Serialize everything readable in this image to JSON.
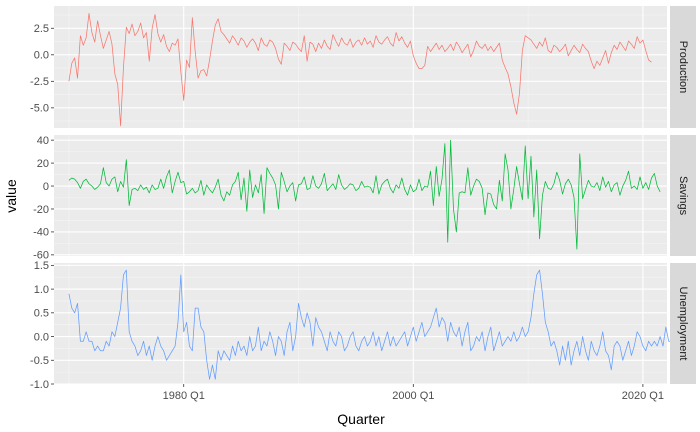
{
  "chart_data": {
    "type": "line",
    "xlabel": "Quarter",
    "ylabel": "value",
    "x_start": 1970.0,
    "x_step": 0.25,
    "x_ticks": [
      {
        "value": 1980.0,
        "label": "1980 Q1"
      },
      {
        "value": 2000.0,
        "label": "2000 Q1"
      },
      {
        "value": 2020.0,
        "label": "2020 Q1"
      }
    ],
    "xlim": [
      1968.7,
      2022.1
    ],
    "grid": true,
    "facets": [
      {
        "name": "Production",
        "color": "#F8766D",
        "ylim": [
          -6.9,
          4.6
        ],
        "y_ticks": [
          {
            "value": -5.0,
            "label": "-5.0"
          },
          {
            "value": -2.5,
            "label": "-2.5"
          },
          {
            "value": 0.0,
            "label": "0.0"
          },
          {
            "value": 2.5,
            "label": "2.5"
          }
        ],
        "values": [
          -2.5,
          -0.8,
          -0.3,
          -2.2,
          1.8,
          0.9,
          1.6,
          3.9,
          2.1,
          1.2,
          3.2,
          1.8,
          0.6,
          1.4,
          2.2,
          1.0,
          -1.8,
          -2.8,
          -6.7,
          -1.2,
          2.6,
          2.0,
          2.9,
          1.8,
          2.2,
          3.0,
          1.6,
          2.1,
          -0.6,
          2.5,
          3.8,
          2.0,
          1.2,
          1.9,
          0.8,
          0.3,
          1.1,
          0.9,
          1.5,
          -1.6,
          -4.3,
          -0.5,
          -1.2,
          3.5,
          0.3,
          -2.2,
          -1.5,
          -1.4,
          -2.0,
          -0.5,
          1.3,
          2.8,
          3.4,
          2.2,
          1.9,
          1.5,
          1.1,
          1.8,
          1.4,
          0.9,
          1.6,
          1.3,
          0.7,
          1.2,
          1.5,
          1.1,
          0.4,
          1.6,
          1.0,
          0.8,
          1.4,
          1.2,
          0.6,
          -0.4,
          -0.9,
          1.1,
          0.8,
          0.4,
          1.2,
          1.0,
          0.6,
          0.3,
          1.8,
          -0.6,
          1.2,
          1.0,
          0.3,
          1.1,
          0.6,
          1.4,
          0.8,
          0.5,
          1.9,
          1.3,
          0.8,
          1.6,
          1.1,
          0.9,
          1.5,
          0.7,
          1.2,
          1.4,
          0.9,
          1.6,
          1.0,
          1.3,
          0.7,
          1.8,
          1.2,
          1.0,
          1.4,
          1.7,
          1.1,
          0.8,
          2.1,
          1.3,
          1.7,
          1.1,
          0.7,
          1.3,
          -0.1,
          -0.8,
          -1.3,
          -1.3,
          -1.0,
          0.8,
          0.3,
          0.7,
          1.1,
          0.5,
          0.9,
          0.3,
          0.6,
          1.0,
          0.4,
          1.2,
          0.8,
          0.2,
          0.6,
          1.0,
          -0.2,
          0.4,
          1.3,
          0.8,
          0.6,
          1.0,
          0.4,
          0.8,
          0.3,
          0.7,
          1.1,
          -0.5,
          -1.2,
          -1.8,
          -3.0,
          -4.5,
          -5.6,
          -3.6,
          0.4,
          1.8,
          1.6,
          1.4,
          1.0,
          0.6,
          1.2,
          0.8,
          1.6,
          0.4,
          0.2,
          0.9,
          0.7,
          0.3,
          0.6,
          1.0,
          -0.1,
          0.4,
          0.9,
          0.5,
          0.2,
          1.0,
          0.6,
          0.3,
          -0.6,
          -1.3,
          -0.6,
          -1.0,
          -0.3,
          0.4,
          -0.8,
          0.2,
          0.9,
          0.5,
          1.2,
          0.8,
          0.4,
          1.3,
          1.0,
          0.6,
          1.7,
          1.1,
          1.4,
          0.4,
          -0.5,
          -0.7
        ]
      },
      {
        "name": "Savings",
        "color": "#00BA38",
        "ylim": [
          -61.0,
          44.5
        ],
        "y_ticks": [
          {
            "value": -60,
            "label": "-60"
          },
          {
            "value": -40,
            "label": "-40"
          },
          {
            "value": -20,
            "label": "-20"
          },
          {
            "value": 0,
            "label": "0"
          },
          {
            "value": 20,
            "label": "20"
          },
          {
            "value": 40,
            "label": "40"
          }
        ],
        "values": [
          5.0,
          7.0,
          6.0,
          3.0,
          -2.0,
          4.0,
          6.0,
          2.0,
          0.0,
          -3.0,
          -1.0,
          2.0,
          16.0,
          3.0,
          0.0,
          6.0,
          8.0,
          -5.0,
          4.0,
          -1.0,
          23.0,
          -17.0,
          -3.0,
          -2.0,
          -4.0,
          1.0,
          -3.0,
          -1.0,
          -6.0,
          1.0,
          -3.0,
          -2.0,
          6.0,
          -2.0,
          8.0,
          14.0,
          -6.0,
          4.0,
          12.0,
          3.0,
          4.0,
          -7.0,
          -5.0,
          -2.0,
          -6.0,
          -4.0,
          5.0,
          -8.0,
          1.0,
          -3.0,
          -6.0,
          -1.0,
          6.0,
          -8.0,
          -13.0,
          -5.0,
          -8.0,
          1.0,
          4.0,
          12.0,
          -12.0,
          7.0,
          -22.0,
          14.0,
          -10.0,
          1.0,
          -6.0,
          10.0,
          -24.0,
          16.0,
          11.0,
          7.0,
          1.0,
          -20.0,
          12.0,
          4.0,
          -5.0,
          0.0,
          3.0,
          -13.0,
          1.0,
          2.0,
          8.0,
          -3.0,
          -2.0,
          9.0,
          0.0,
          -2.0,
          2.0,
          11.0,
          -4.0,
          -1.0,
          2.0,
          -3.0,
          10.0,
          1.0,
          -3.0,
          -1.0,
          2.0,
          1.0,
          -4.0,
          -2.0,
          4.0,
          -1.0,
          0.0,
          -1.0,
          -6.0,
          9.0,
          -7.0,
          1.0,
          4.0,
          6.0,
          -2.0,
          -6.0,
          1.0,
          -2.0,
          7.0,
          -3.0,
          -8.0,
          1.0,
          -5.0,
          -3.0,
          6.0,
          -4.0,
          0.0,
          -1.0,
          13.0,
          -17.0,
          17.0,
          -9.0,
          6.0,
          37.0,
          -49.0,
          40.0,
          -20.0,
          -40.0,
          -6.0,
          -5.0,
          -6.0,
          16.0,
          -8.0,
          0.0,
          6.0,
          4.0,
          -2.0,
          -25.0,
          -6.0,
          -7.0,
          -16.0,
          -20.0,
          5.0,
          -13.0,
          28.0,
          14.0,
          -20.0,
          -3.0,
          17.0,
          2.0,
          -12.0,
          35.0,
          -11.0,
          26.0,
          -27.0,
          14.0,
          -46.0,
          -8.0,
          4.0,
          -2.0,
          -3.0,
          2.0,
          12.0,
          5.0,
          -7.0,
          2.0,
          6.0,
          1.0,
          -10.0,
          -55.0,
          28.0,
          -11.0,
          -3.0,
          5.0,
          0.0,
          -1.0,
          3.0,
          -4.0,
          8.0,
          -1.0,
          4.0,
          -5.0,
          1.0,
          3.0,
          -8.0,
          0.0,
          5.0,
          13.0,
          -2.0,
          0.0,
          -3.0,
          8.0,
          -2.0,
          3.0,
          -3.0,
          7.0,
          11.0,
          0.0,
          -5.0
        ]
      },
      {
        "name": "Unemployment",
        "color": "#619CFF",
        "ylim": [
          -1.0,
          1.55
        ],
        "y_ticks": [
          {
            "value": -1.0,
            "label": "-1.0"
          },
          {
            "value": -0.5,
            "label": "-0.5"
          },
          {
            "value": 0.0,
            "label": "0.0"
          },
          {
            "value": 0.5,
            "label": "0.5"
          },
          {
            "value": 1.0,
            "label": "1.0"
          },
          {
            "value": 1.5,
            "label": "1.5"
          }
        ],
        "values": [
          0.9,
          0.6,
          0.5,
          0.7,
          -0.1,
          -0.1,
          0.1,
          -0.1,
          -0.1,
          -0.3,
          -0.2,
          -0.3,
          -0.3,
          -0.1,
          -0.2,
          0.1,
          0.0,
          0.3,
          0.6,
          1.3,
          1.4,
          0.1,
          -0.1,
          -0.2,
          -0.4,
          -0.3,
          -0.1,
          -0.4,
          -0.2,
          -0.5,
          -0.2,
          0.0,
          -0.2,
          -0.3,
          -0.5,
          -0.4,
          -0.3,
          -0.2,
          0.3,
          1.3,
          0.1,
          0.3,
          -0.2,
          -0.3,
          0.6,
          0.6,
          0.2,
          0.1,
          -0.5,
          -0.9,
          -0.6,
          -0.9,
          -0.3,
          -0.5,
          -0.3,
          -0.4,
          -0.5,
          -0.2,
          -0.4,
          -0.1,
          -0.3,
          -0.2,
          -0.4,
          0.0,
          -0.3,
          -0.2,
          0.2,
          -0.3,
          -0.1,
          -0.2,
          0.1,
          -0.1,
          -0.4,
          0.0,
          -0.1,
          -0.4,
          0.1,
          0.3,
          -0.3,
          0.0,
          0.7,
          0.4,
          0.2,
          0.5,
          0.3,
          -0.2,
          0.4,
          0.2,
          0.1,
          -0.1,
          -0.3,
          0.1,
          -0.1,
          -0.2,
          0.1,
          0.0,
          -0.3,
          -0.2,
          0.0,
          0.1,
          -0.2,
          -0.3,
          -0.1,
          0.0,
          -0.2,
          -0.1,
          0.1,
          -0.2,
          0.0,
          -0.3,
          -0.1,
          0.1,
          -0.2,
          0.0,
          -0.2,
          -0.1,
          0.0,
          0.1,
          -0.2,
          0.0,
          0.2,
          -0.1,
          0.1,
          0.3,
          0.0,
          0.1,
          0.2,
          0.4,
          0.6,
          0.2,
          0.4,
          0.3,
          -0.1,
          0.3,
          0.1,
          0.0,
          0.2,
          -0.2,
          0.1,
          0.3,
          -0.3,
          -0.2,
          0.0,
          -0.1,
          0.1,
          -0.3,
          0.0,
          0.2,
          -0.3,
          -0.1,
          0.1,
          -0.2,
          -0.1,
          0.0,
          -0.1,
          0.1,
          -0.1,
          0.0,
          0.2,
          0.0,
          0.1,
          0.4,
          0.9,
          1.3,
          1.4,
          0.9,
          0.3,
          0.1,
          -0.2,
          -0.1,
          -0.3,
          -0.6,
          -0.2,
          -0.5,
          -0.1,
          -0.6,
          -0.3,
          -0.1,
          -0.4,
          0.0,
          -0.3,
          -0.5,
          -0.1,
          -0.3,
          -0.4,
          -0.2,
          0.1,
          -0.3,
          -0.4,
          -0.7,
          -0.2,
          -0.1,
          -0.2,
          -0.5,
          -0.3,
          -0.1,
          -0.4,
          -0.2,
          0.1,
          0.0,
          -0.2,
          -0.3,
          -0.1,
          -0.2,
          -0.1,
          -0.2,
          0.0,
          -0.2,
          0.2,
          -0.1,
          -0.1
        ]
      }
    ]
  }
}
